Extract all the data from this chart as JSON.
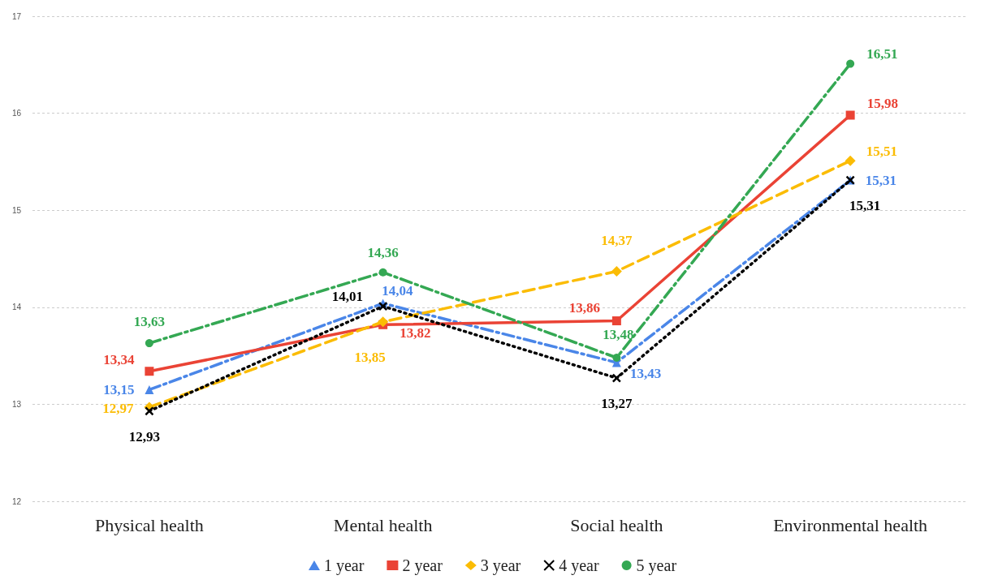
{
  "chart_data": {
    "type": "line",
    "categories": [
      "Physical health",
      "Mental health",
      "Social health",
      "Environmental health"
    ],
    "ylim": [
      12,
      17
    ],
    "yticks": [
      12,
      13,
      14,
      15,
      16,
      17
    ],
    "grid": "y",
    "legend": "bottom",
    "series": [
      {
        "name": "1 year",
        "color": "#4a86e8",
        "marker": "triangle",
        "line_style": "dashdot",
        "values": [
          13.15,
          14.04,
          13.43,
          15.31
        ],
        "value_labels": [
          "13,15",
          "14,04",
          "13,43",
          "15,31"
        ]
      },
      {
        "name": "2 year",
        "color": "#ea4335",
        "marker": "square",
        "line_style": "solid",
        "values": [
          13.34,
          13.82,
          13.86,
          15.98
        ],
        "value_labels": [
          "13,34",
          "13,82",
          "13,86",
          "15,98"
        ]
      },
      {
        "name": "3 year",
        "color": "#fbbc04",
        "marker": "diamond",
        "line_style": "dashed",
        "values": [
          12.97,
          13.85,
          14.37,
          15.51
        ],
        "value_labels": [
          "12,97",
          "13,85",
          "14,37",
          "15,51"
        ]
      },
      {
        "name": "4 year",
        "color": "#000000",
        "marker": "cross",
        "line_style": "dotted",
        "values": [
          12.93,
          14.01,
          13.27,
          15.31
        ],
        "value_labels": [
          "12,93",
          "14,01",
          "13,27",
          "15,31"
        ]
      },
      {
        "name": "5 year",
        "color": "#34a853",
        "marker": "circle",
        "line_style": "dashdot",
        "values": [
          13.63,
          14.36,
          13.48,
          16.51
        ],
        "value_labels": [
          "13,63",
          "14,36",
          "13,48",
          "16,51"
        ]
      }
    ]
  }
}
